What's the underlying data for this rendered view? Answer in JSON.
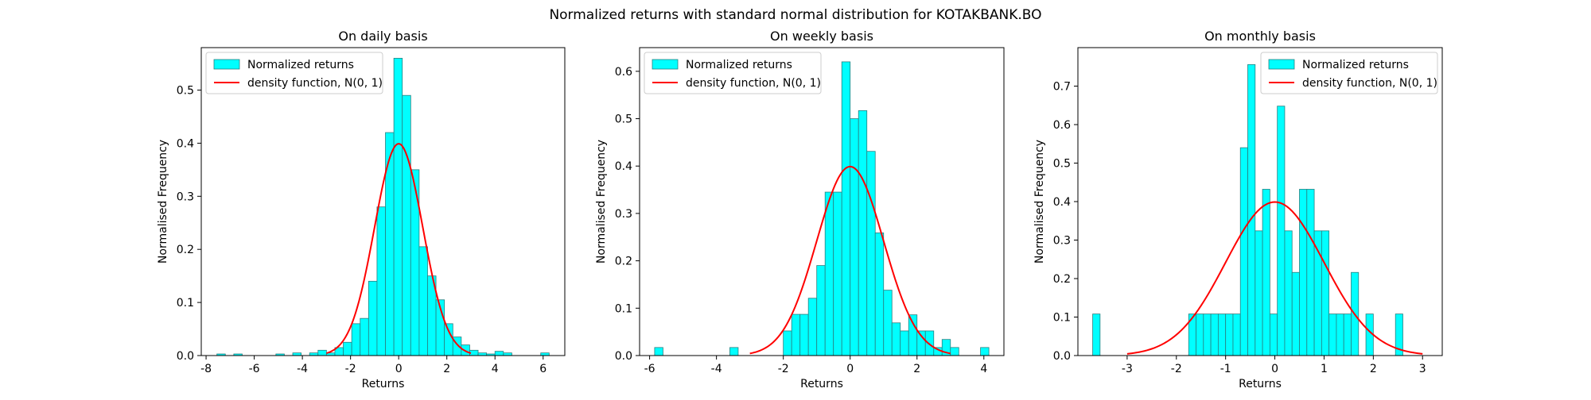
{
  "figure": {
    "title": "Normalized returns with standard normal distribution for KOTAKBANK.BO"
  },
  "legend": {
    "hist_label": "Normalized returns",
    "curve_label": "density function, N(0, 1)"
  },
  "colors": {
    "bar_fill": "#00FFFF",
    "bar_edge": "#2a7f7f",
    "curve": "#FF0000"
  },
  "chart_data": [
    {
      "type": "bar",
      "title": "On daily basis",
      "xlabel": "Returns",
      "ylabel": "Normalised Frequency",
      "xlim": [
        -8.2,
        6.9
      ],
      "ylim": [
        0,
        0.58
      ],
      "xticks": [
        -8,
        -6,
        -4,
        -2,
        0,
        2,
        4,
        6
      ],
      "yticks": [
        0.0,
        0.1,
        0.2,
        0.3,
        0.4,
        0.5
      ],
      "legend_position": "top-left",
      "grid": false,
      "bins": [
        [
          -7.55,
          -7.2,
          0.003
        ],
        [
          -6.85,
          -6.5,
          0.003
        ],
        [
          -5.1,
          -4.75,
          0.003
        ],
        [
          -4.4,
          -4.05,
          0.005
        ],
        [
          -3.7,
          -3.35,
          0.005
        ],
        [
          -3.35,
          -3.0,
          0.01
        ],
        [
          -3.0,
          -2.65,
          0.005
        ],
        [
          -2.65,
          -2.3,
          0.015
        ],
        [
          -2.3,
          -1.95,
          0.025
        ],
        [
          -1.95,
          -1.6,
          0.06
        ],
        [
          -1.6,
          -1.25,
          0.07
        ],
        [
          -1.25,
          -0.9,
          0.14
        ],
        [
          -0.9,
          -0.55,
          0.28
        ],
        [
          -0.55,
          -0.2,
          0.42
        ],
        [
          -0.2,
          0.15,
          0.56
        ],
        [
          0.15,
          0.5,
          0.49
        ],
        [
          0.5,
          0.85,
          0.35
        ],
        [
          0.85,
          1.2,
          0.205
        ],
        [
          1.2,
          1.55,
          0.15
        ],
        [
          1.55,
          1.9,
          0.105
        ],
        [
          1.9,
          2.25,
          0.06
        ],
        [
          2.25,
          2.6,
          0.035
        ],
        [
          2.6,
          2.95,
          0.02
        ],
        [
          2.95,
          3.3,
          0.01
        ],
        [
          3.3,
          3.65,
          0.005
        ],
        [
          3.65,
          4.0,
          0.003
        ],
        [
          4.0,
          4.35,
          0.008
        ],
        [
          4.35,
          4.7,
          0.005
        ],
        [
          5.9,
          6.25,
          0.005
        ]
      ],
      "curve_x_range": [
        -3,
        3
      ]
    },
    {
      "type": "bar",
      "title": "On weekly basis",
      "xlabel": "Returns",
      "ylabel": "Normalised Frequency",
      "xlim": [
        -6.3,
        4.6
      ],
      "ylim": [
        0,
        0.65
      ],
      "xticks": [
        -6,
        -4,
        -2,
        0,
        2,
        4
      ],
      "yticks": [
        0.0,
        0.1,
        0.2,
        0.3,
        0.4,
        0.5,
        0.6
      ],
      "legend_position": "top-left",
      "grid": false,
      "bins": [
        [
          -5.85,
          -5.6,
          0.017
        ],
        [
          -3.6,
          -3.35,
          0.017
        ],
        [
          -2.0,
          -1.75,
          0.052
        ],
        [
          -1.75,
          -1.5,
          0.087
        ],
        [
          -1.5,
          -1.25,
          0.087
        ],
        [
          -1.25,
          -1.0,
          0.121
        ],
        [
          -1.0,
          -0.75,
          0.19
        ],
        [
          -0.75,
          -0.5,
          0.345
        ],
        [
          -0.5,
          -0.25,
          0.345
        ],
        [
          -0.25,
          0.0,
          0.62
        ],
        [
          0.0,
          0.25,
          0.5
        ],
        [
          0.25,
          0.5,
          0.517
        ],
        [
          0.5,
          0.75,
          0.431
        ],
        [
          0.75,
          1.0,
          0.259
        ],
        [
          1.0,
          1.25,
          0.138
        ],
        [
          1.25,
          1.5,
          0.069
        ],
        [
          1.5,
          1.75,
          0.052
        ],
        [
          1.75,
          2.0,
          0.086
        ],
        [
          2.0,
          2.25,
          0.052
        ],
        [
          2.25,
          2.5,
          0.052
        ],
        [
          2.5,
          2.75,
          0.017
        ],
        [
          2.75,
          3.0,
          0.034
        ],
        [
          3.0,
          3.25,
          0.017
        ],
        [
          3.9,
          4.15,
          0.017
        ]
      ],
      "curve_x_range": [
        -3,
        3
      ]
    },
    {
      "type": "bar",
      "title": "On monthly basis",
      "xlabel": "Returns",
      "ylabel": "Normalised Frequency",
      "xlim": [
        -4.0,
        3.4
      ],
      "ylim": [
        0,
        0.8
      ],
      "xticks": [
        -3,
        -2,
        -1,
        0,
        1,
        2,
        3
      ],
      "yticks": [
        0.0,
        0.1,
        0.2,
        0.3,
        0.4,
        0.5,
        0.6,
        0.7
      ],
      "legend_position": "top-right",
      "grid": false,
      "bins": [
        [
          -3.7,
          -3.55,
          0.108
        ],
        [
          -1.75,
          -1.6,
          0.108
        ],
        [
          -1.6,
          -1.45,
          0.108
        ],
        [
          -1.45,
          -1.3,
          0.108
        ],
        [
          -1.3,
          -1.15,
          0.108
        ],
        [
          -1.15,
          -1.0,
          0.108
        ],
        [
          -1.0,
          -0.85,
          0.108
        ],
        [
          -0.85,
          -0.7,
          0.108
        ],
        [
          -0.7,
          -0.55,
          0.54
        ],
        [
          -0.55,
          -0.4,
          0.756
        ],
        [
          -0.4,
          -0.25,
          0.324
        ],
        [
          -0.25,
          -0.1,
          0.432
        ],
        [
          -0.1,
          0.05,
          0.108
        ],
        [
          0.05,
          0.2,
          0.648
        ],
        [
          0.2,
          0.35,
          0.324
        ],
        [
          0.35,
          0.5,
          0.216
        ],
        [
          0.5,
          0.65,
          0.432
        ],
        [
          0.65,
          0.8,
          0.432
        ],
        [
          0.8,
          0.95,
          0.324
        ],
        [
          0.95,
          1.1,
          0.324
        ],
        [
          1.1,
          1.25,
          0.108
        ],
        [
          1.25,
          1.4,
          0.108
        ],
        [
          1.4,
          1.55,
          0.108
        ],
        [
          1.55,
          1.7,
          0.216
        ],
        [
          1.85,
          2.0,
          0.108
        ],
        [
          2.45,
          2.6,
          0.108
        ]
      ],
      "curve_x_range": [
        -3,
        3
      ]
    }
  ]
}
